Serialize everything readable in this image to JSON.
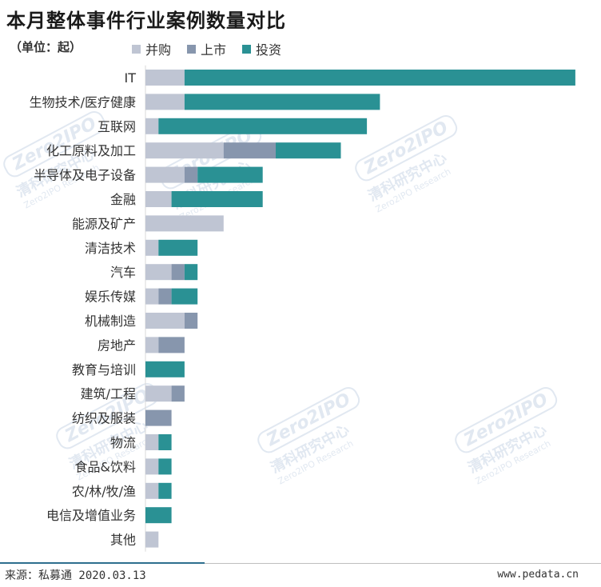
{
  "title": "本月整体事件行业案例数量对比",
  "unit": "（单位：起）",
  "legend": [
    {
      "label": "并购",
      "color": "#bfc5d3"
    },
    {
      "label": "上市",
      "color": "#8796ad"
    },
    {
      "label": "投资",
      "color": "#2a9194"
    }
  ],
  "chart_data": {
    "type": "bar",
    "orientation": "horizontal",
    "stacked": true,
    "title": "本月整体事件行业案例数量对比",
    "unit": "（单位：起）",
    "categories": [
      "IT",
      "生物技术/医疗健康",
      "互联网",
      "化工原料及加工",
      "半导体及电子设备",
      "金融",
      "能源及矿产",
      "清洁技术",
      "汽车",
      "娱乐传媒",
      "机械制造",
      "房地产",
      "教育与培训",
      "建筑/工程",
      "纺织及服装",
      "物流",
      "食品&饮料",
      "农/林/牧/渔",
      "电信及增值业务",
      "其他"
    ],
    "series": [
      {
        "name": "并购",
        "color": "#bfc5d3",
        "values": [
          3,
          3,
          1,
          6,
          3,
          2,
          6,
          1,
          2,
          1,
          3,
          1,
          0,
          2,
          0,
          1,
          1,
          1,
          0,
          1
        ]
      },
      {
        "name": "上市",
        "color": "#8796ad",
        "values": [
          0,
          0,
          0,
          4,
          1,
          0,
          0,
          0,
          1,
          1,
          1,
          2,
          0,
          1,
          2,
          0,
          0,
          0,
          0,
          0
        ]
      },
      {
        "name": "投资",
        "color": "#2a9194",
        "values": [
          30,
          15,
          16,
          5,
          5,
          7,
          0,
          3,
          1,
          2,
          0,
          0,
          3,
          0,
          0,
          1,
          1,
          1,
          2,
          0
        ]
      }
    ],
    "xlim": [
      0,
      33
    ],
    "grid": false,
    "legend_position": "top"
  },
  "footer": {
    "source": "来源：私募通 2020.03.13",
    "site": "www.pedata.cn"
  },
  "watermark": {
    "logo": "Zero2IPO",
    "cn": "清科研究中心",
    "en": "Zero2IPO Research"
  }
}
